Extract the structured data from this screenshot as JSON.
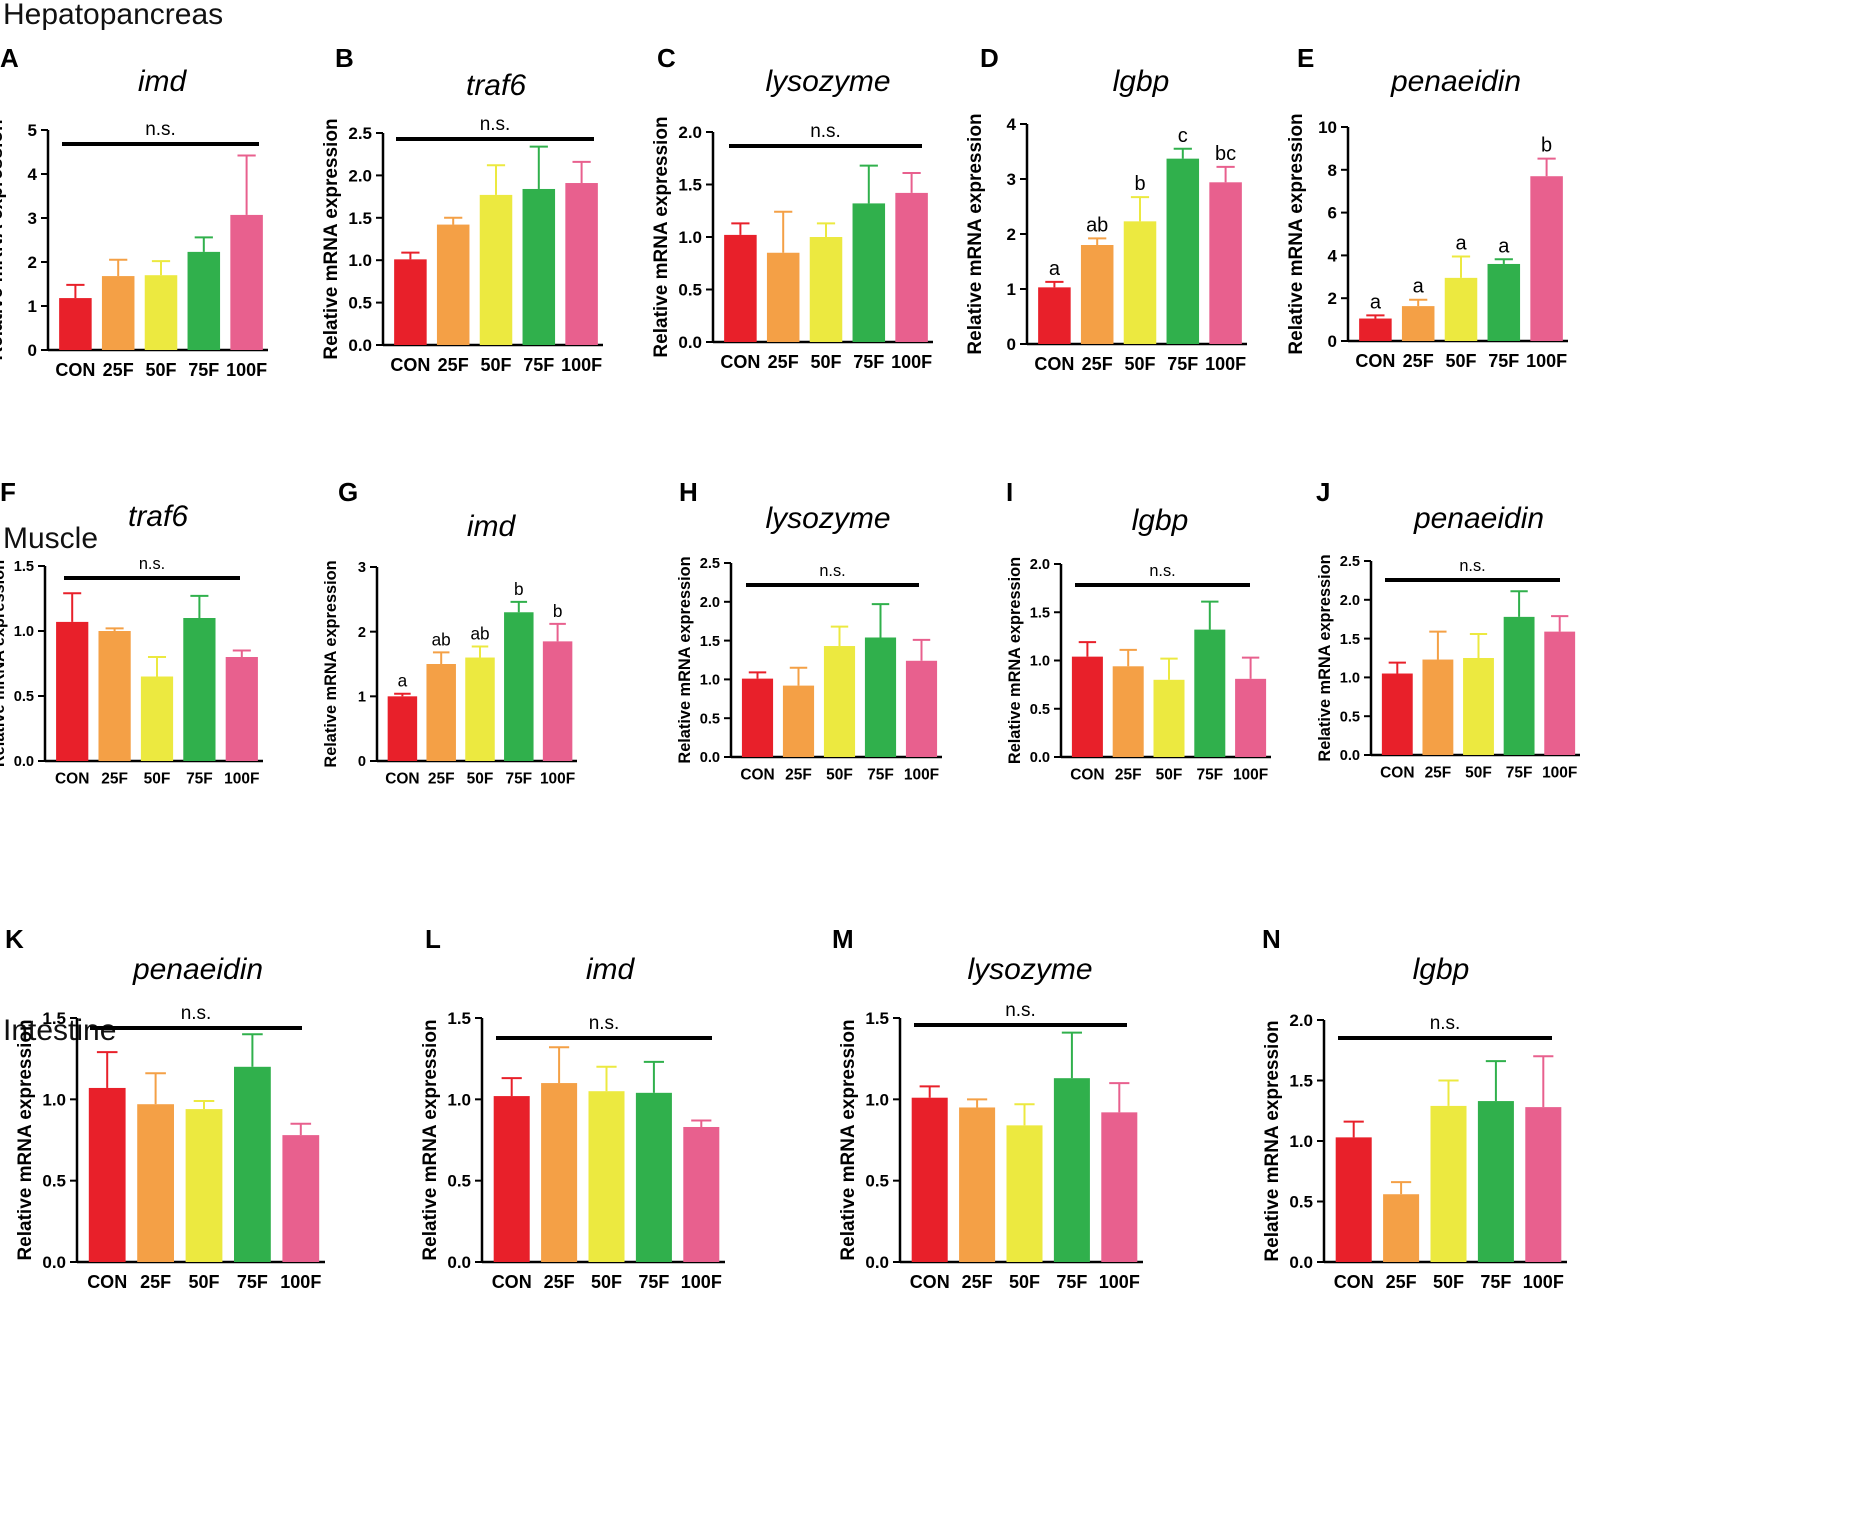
{
  "figure": {
    "section_titles": [
      "Hepatopancreas",
      "Muscle",
      "Intestine"
    ],
    "bar_colors": {
      "CON": "#e8202a",
      "25F": "#f4a046",
      "50F": "#ece940",
      "75F": "#30b04c",
      "100F": "#e8608e"
    }
  },
  "chart_data": [
    {
      "panel": "A",
      "type": "bar",
      "title": "imd",
      "ylabel": "Relative mRNA expression",
      "xlabel": "",
      "categories": [
        "CON",
        "25F",
        "50F",
        "75F",
        "100F"
      ],
      "values": [
        1.18,
        1.68,
        1.7,
        2.23,
        3.07
      ],
      "errors": [
        0.3,
        0.37,
        0.32,
        0.33,
        1.35
      ],
      "ylim": [
        0,
        5
      ],
      "yticks": [
        "0",
        "1",
        "2",
        "3",
        "4",
        "5"
      ],
      "significance": {
        "type": "bar",
        "text": "n.s."
      }
    },
    {
      "panel": "B",
      "type": "bar",
      "title": "traf6",
      "ylabel": "Relative mRNA expression",
      "xlabel": "",
      "categories": [
        "CON",
        "25F",
        "50F",
        "75F",
        "100F"
      ],
      "values": [
        1.01,
        1.42,
        1.77,
        1.84,
        1.91
      ],
      "errors": [
        0.08,
        0.08,
        0.35,
        0.5,
        0.25
      ],
      "ylim": [
        0,
        2.5
      ],
      "yticks": [
        "0.0",
        "0.5",
        "1.0",
        "1.5",
        "2.0",
        "2.5"
      ],
      "significance": {
        "type": "bar",
        "text": "n.s."
      }
    },
    {
      "panel": "C",
      "type": "bar",
      "title": "lysozyme",
      "ylabel": "Relative mRNA expression",
      "xlabel": "",
      "categories": [
        "CON",
        "25F",
        "50F",
        "75F",
        "100F"
      ],
      "values": [
        1.02,
        0.85,
        1.0,
        1.32,
        1.42
      ],
      "errors": [
        0.11,
        0.39,
        0.13,
        0.36,
        0.19
      ],
      "ylim": [
        0,
        2.0
      ],
      "yticks": [
        "0.0",
        "0.5",
        "1.0",
        "1.5",
        "2.0"
      ],
      "significance": {
        "type": "bar",
        "text": "n.s."
      }
    },
    {
      "panel": "D",
      "type": "bar",
      "title": "lgbp",
      "ylabel": "Relative mRNA expression",
      "xlabel": "",
      "categories": [
        "CON",
        "25F",
        "50F",
        "75F",
        "100F"
      ],
      "values": [
        1.03,
        1.8,
        2.23,
        3.37,
        2.94
      ],
      "errors": [
        0.1,
        0.12,
        0.44,
        0.18,
        0.28
      ],
      "ylim": [
        0,
        4
      ],
      "yticks": [
        "0",
        "1",
        "2",
        "3",
        "4"
      ],
      "significance": {
        "type": "letters",
        "letters": [
          "a",
          "ab",
          "b",
          "c",
          "bc"
        ]
      }
    },
    {
      "panel": "E",
      "type": "bar",
      "title": "penaeidin",
      "ylabel": "Relative mRNA expression",
      "xlabel": "",
      "categories": [
        "CON",
        "25F",
        "50F",
        "75F",
        "100F"
      ],
      "values": [
        1.05,
        1.63,
        2.95,
        3.6,
        7.7
      ],
      "errors": [
        0.15,
        0.3,
        1.0,
        0.22,
        0.82
      ],
      "ylim": [
        0,
        10
      ],
      "yticks": [
        "0",
        "2",
        "4",
        "6",
        "8",
        "10"
      ],
      "significance": {
        "type": "letters",
        "letters": [
          "a",
          "a",
          "a",
          "a",
          "b"
        ]
      }
    },
    {
      "panel": "F",
      "type": "bar",
      "title": "traf6",
      "ylabel": "Relative mRNA expression",
      "xlabel": "",
      "categories": [
        "CON",
        "25F",
        "50F",
        "75F",
        "100F"
      ],
      "values": [
        1.07,
        1.0,
        0.65,
        1.1,
        0.8
      ],
      "errors": [
        0.22,
        0.02,
        0.15,
        0.17,
        0.05
      ],
      "ylim": [
        0,
        1.5
      ],
      "yticks": [
        "0.0",
        "0.5",
        "1.0",
        "1.5"
      ],
      "significance": {
        "type": "bar",
        "text": "n.s."
      }
    },
    {
      "panel": "G",
      "type": "bar",
      "title": "imd",
      "ylabel": "Relative mRNA expression",
      "xlabel": "",
      "categories": [
        "CON",
        "25F",
        "50F",
        "75F",
        "100F"
      ],
      "values": [
        1.0,
        1.5,
        1.6,
        2.3,
        1.85
      ],
      "errors": [
        0.04,
        0.18,
        0.17,
        0.16,
        0.27
      ],
      "ylim": [
        0,
        3
      ],
      "yticks": [
        "0",
        "1",
        "2",
        "3"
      ],
      "significance": {
        "type": "letters",
        "letters": [
          "a",
          "ab",
          "ab",
          "b",
          "b"
        ]
      }
    },
    {
      "panel": "H",
      "type": "bar",
      "title": "lysozyme",
      "ylabel": "Relative mRNA expression",
      "xlabel": "",
      "categories": [
        "CON",
        "25F",
        "50F",
        "75F",
        "100F"
      ],
      "values": [
        1.01,
        0.92,
        1.43,
        1.54,
        1.24
      ],
      "errors": [
        0.08,
        0.23,
        0.25,
        0.43,
        0.27
      ],
      "ylim": [
        0,
        2.5
      ],
      "yticks": [
        "0.0",
        "0.5",
        "1.0",
        "1.5",
        "2.0",
        "2.5"
      ],
      "significance": {
        "type": "bar",
        "text": "n.s."
      }
    },
    {
      "panel": "I",
      "type": "bar",
      "title": "lgbp",
      "ylabel": "Relative mRNA expression",
      "xlabel": "",
      "categories": [
        "CON",
        "25F",
        "50F",
        "75F",
        "100F"
      ],
      "values": [
        1.04,
        0.94,
        0.8,
        1.32,
        0.81
      ],
      "errors": [
        0.15,
        0.17,
        0.22,
        0.29,
        0.22
      ],
      "ylim": [
        0,
        2.0
      ],
      "yticks": [
        "0.0",
        "0.5",
        "1.0",
        "1.5",
        "2.0"
      ],
      "significance": {
        "type": "bar",
        "text": "n.s."
      }
    },
    {
      "panel": "J",
      "type": "bar",
      "title": "penaeidin",
      "ylabel": "Relative mRNA expression",
      "xlabel": "",
      "categories": [
        "CON",
        "25F",
        "50F",
        "75F",
        "100F"
      ],
      "values": [
        1.05,
        1.23,
        1.25,
        1.78,
        1.59
      ],
      "errors": [
        0.14,
        0.36,
        0.31,
        0.33,
        0.2
      ],
      "ylim": [
        0,
        2.5
      ],
      "yticks": [
        "0.0",
        "0.5",
        "1.0",
        "1.5",
        "2.0",
        "2.5"
      ],
      "significance": {
        "type": "bar",
        "text": "n.s."
      }
    },
    {
      "panel": "K",
      "type": "bar",
      "title": "penaeidin",
      "ylabel": "Relative mRNA expression",
      "xlabel": "",
      "categories": [
        "CON",
        "25F",
        "50F",
        "75F",
        "100F"
      ],
      "values": [
        1.07,
        0.97,
        0.94,
        1.2,
        0.78
      ],
      "errors": [
        0.22,
        0.19,
        0.05,
        0.2,
        0.07
      ],
      "ylim": [
        0,
        1.5
      ],
      "yticks": [
        "0.0",
        "0.5",
        "1.0",
        "1.5"
      ],
      "significance": {
        "type": "bar",
        "text": "n.s."
      }
    },
    {
      "panel": "L",
      "type": "bar",
      "title": "imd",
      "ylabel": "Relative mRNA expression",
      "xlabel": "",
      "categories": [
        "CON",
        "25F",
        "50F",
        "75F",
        "100F"
      ],
      "values": [
        1.02,
        1.1,
        1.05,
        1.04,
        0.83
      ],
      "errors": [
        0.11,
        0.22,
        0.15,
        0.19,
        0.04
      ],
      "ylim": [
        0,
        1.5
      ],
      "yticks": [
        "0.0",
        "0.5",
        "1.0",
        "1.5"
      ],
      "significance": {
        "type": "bar",
        "text": "n.s."
      }
    },
    {
      "panel": "M",
      "type": "bar",
      "title": "lysozyme",
      "ylabel": "Relative mRNA expression",
      "xlabel": "",
      "categories": [
        "CON",
        "25F",
        "50F",
        "75F",
        "100F"
      ],
      "values": [
        1.01,
        0.95,
        0.84,
        1.13,
        0.92
      ],
      "errors": [
        0.07,
        0.05,
        0.13,
        0.28,
        0.18
      ],
      "ylim": [
        0,
        1.5
      ],
      "yticks": [
        "0.0",
        "0.5",
        "1.0",
        "1.5"
      ],
      "significance": {
        "type": "bar",
        "text": "n.s."
      }
    },
    {
      "panel": "N",
      "type": "bar",
      "title": "lgbp",
      "ylabel": "Relative mRNA expression",
      "xlabel": "",
      "categories": [
        "CON",
        "25F",
        "50F",
        "75F",
        "100F"
      ],
      "values": [
        1.03,
        0.56,
        1.29,
        1.33,
        1.28
      ],
      "errors": [
        0.13,
        0.1,
        0.21,
        0.33,
        0.42
      ],
      "ylim": [
        0,
        2.0
      ],
      "yticks": [
        "0.0",
        "0.5",
        "1.0",
        "1.5",
        "2.0"
      ],
      "significance": {
        "type": "bar",
        "text": "n.s."
      }
    }
  ]
}
